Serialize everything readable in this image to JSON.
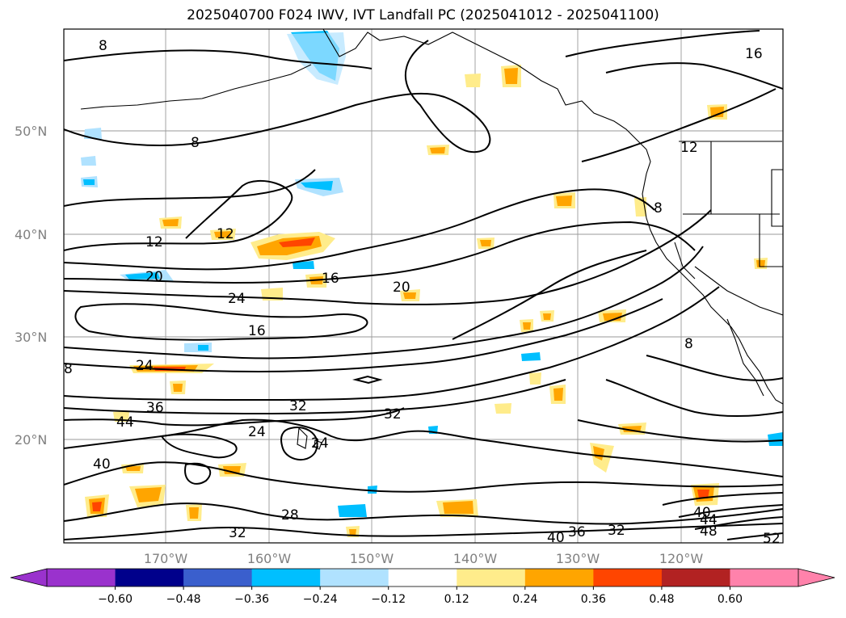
{
  "title": "2025040700 F024 IWV, IVT Landfall PC (2025041012 - 2025041100)",
  "map": {
    "lat_labels": [
      "50°N",
      "40°N",
      "30°N",
      "20°N"
    ],
    "lon_labels": [
      "170°W",
      "160°W",
      "150°W",
      "140°W",
      "130°W",
      "120°W"
    ],
    "contour_labels": [
      "8",
      "8",
      "8",
      "8",
      "8",
      "12",
      "12",
      "12",
      "16",
      "16",
      "16",
      "20",
      "20",
      "24",
      "24",
      "24",
      "24",
      "28",
      "32",
      "32",
      "32",
      "32",
      "36",
      "36",
      "40",
      "40",
      "40",
      "44",
      "44",
      "48",
      "52"
    ]
  },
  "colorbar": {
    "ticks": [
      "−0.60",
      "−0.48",
      "−0.36",
      "−0.24",
      "−0.12",
      "0.12",
      "0.24",
      "0.36",
      "0.48",
      "0.60"
    ],
    "colors": [
      "#9a32cd",
      "#00008b",
      "#3a5fcd",
      "#00bfff",
      "#b0e2ff",
      "#ffffff",
      "#ffec8b",
      "#ffa500",
      "#ff4500",
      "#b22222",
      "#ff82ab"
    ]
  }
}
